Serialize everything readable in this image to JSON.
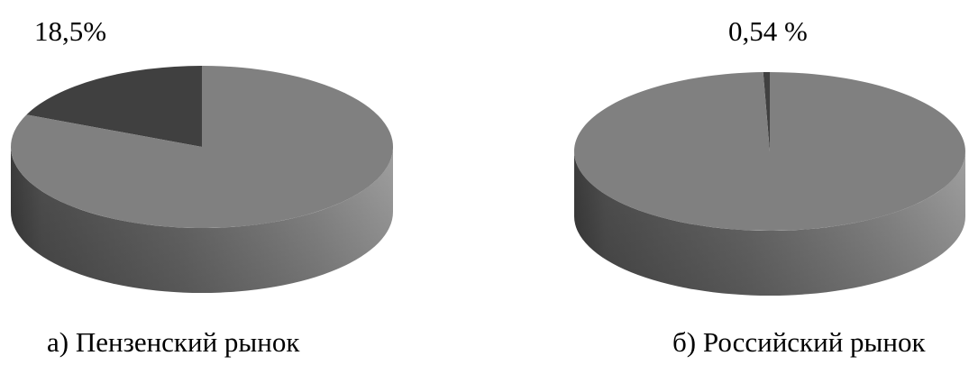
{
  "chart_data": [
    {
      "type": "pie",
      "style": "3d",
      "caption": "а) Пензенский рынок",
      "data_label": "18,5%",
      "slices": [
        {
          "value": 18.5,
          "color": "#404040"
        },
        {
          "value": 81.5,
          "color": "#808080"
        }
      ]
    },
    {
      "type": "pie",
      "style": "3d",
      "caption": "б) Российский рынок",
      "data_label": "0,54 %",
      "slices": [
        {
          "value": 0.54,
          "color": "#404040"
        },
        {
          "value": 99.46,
          "color": "#808080"
        }
      ]
    }
  ]
}
